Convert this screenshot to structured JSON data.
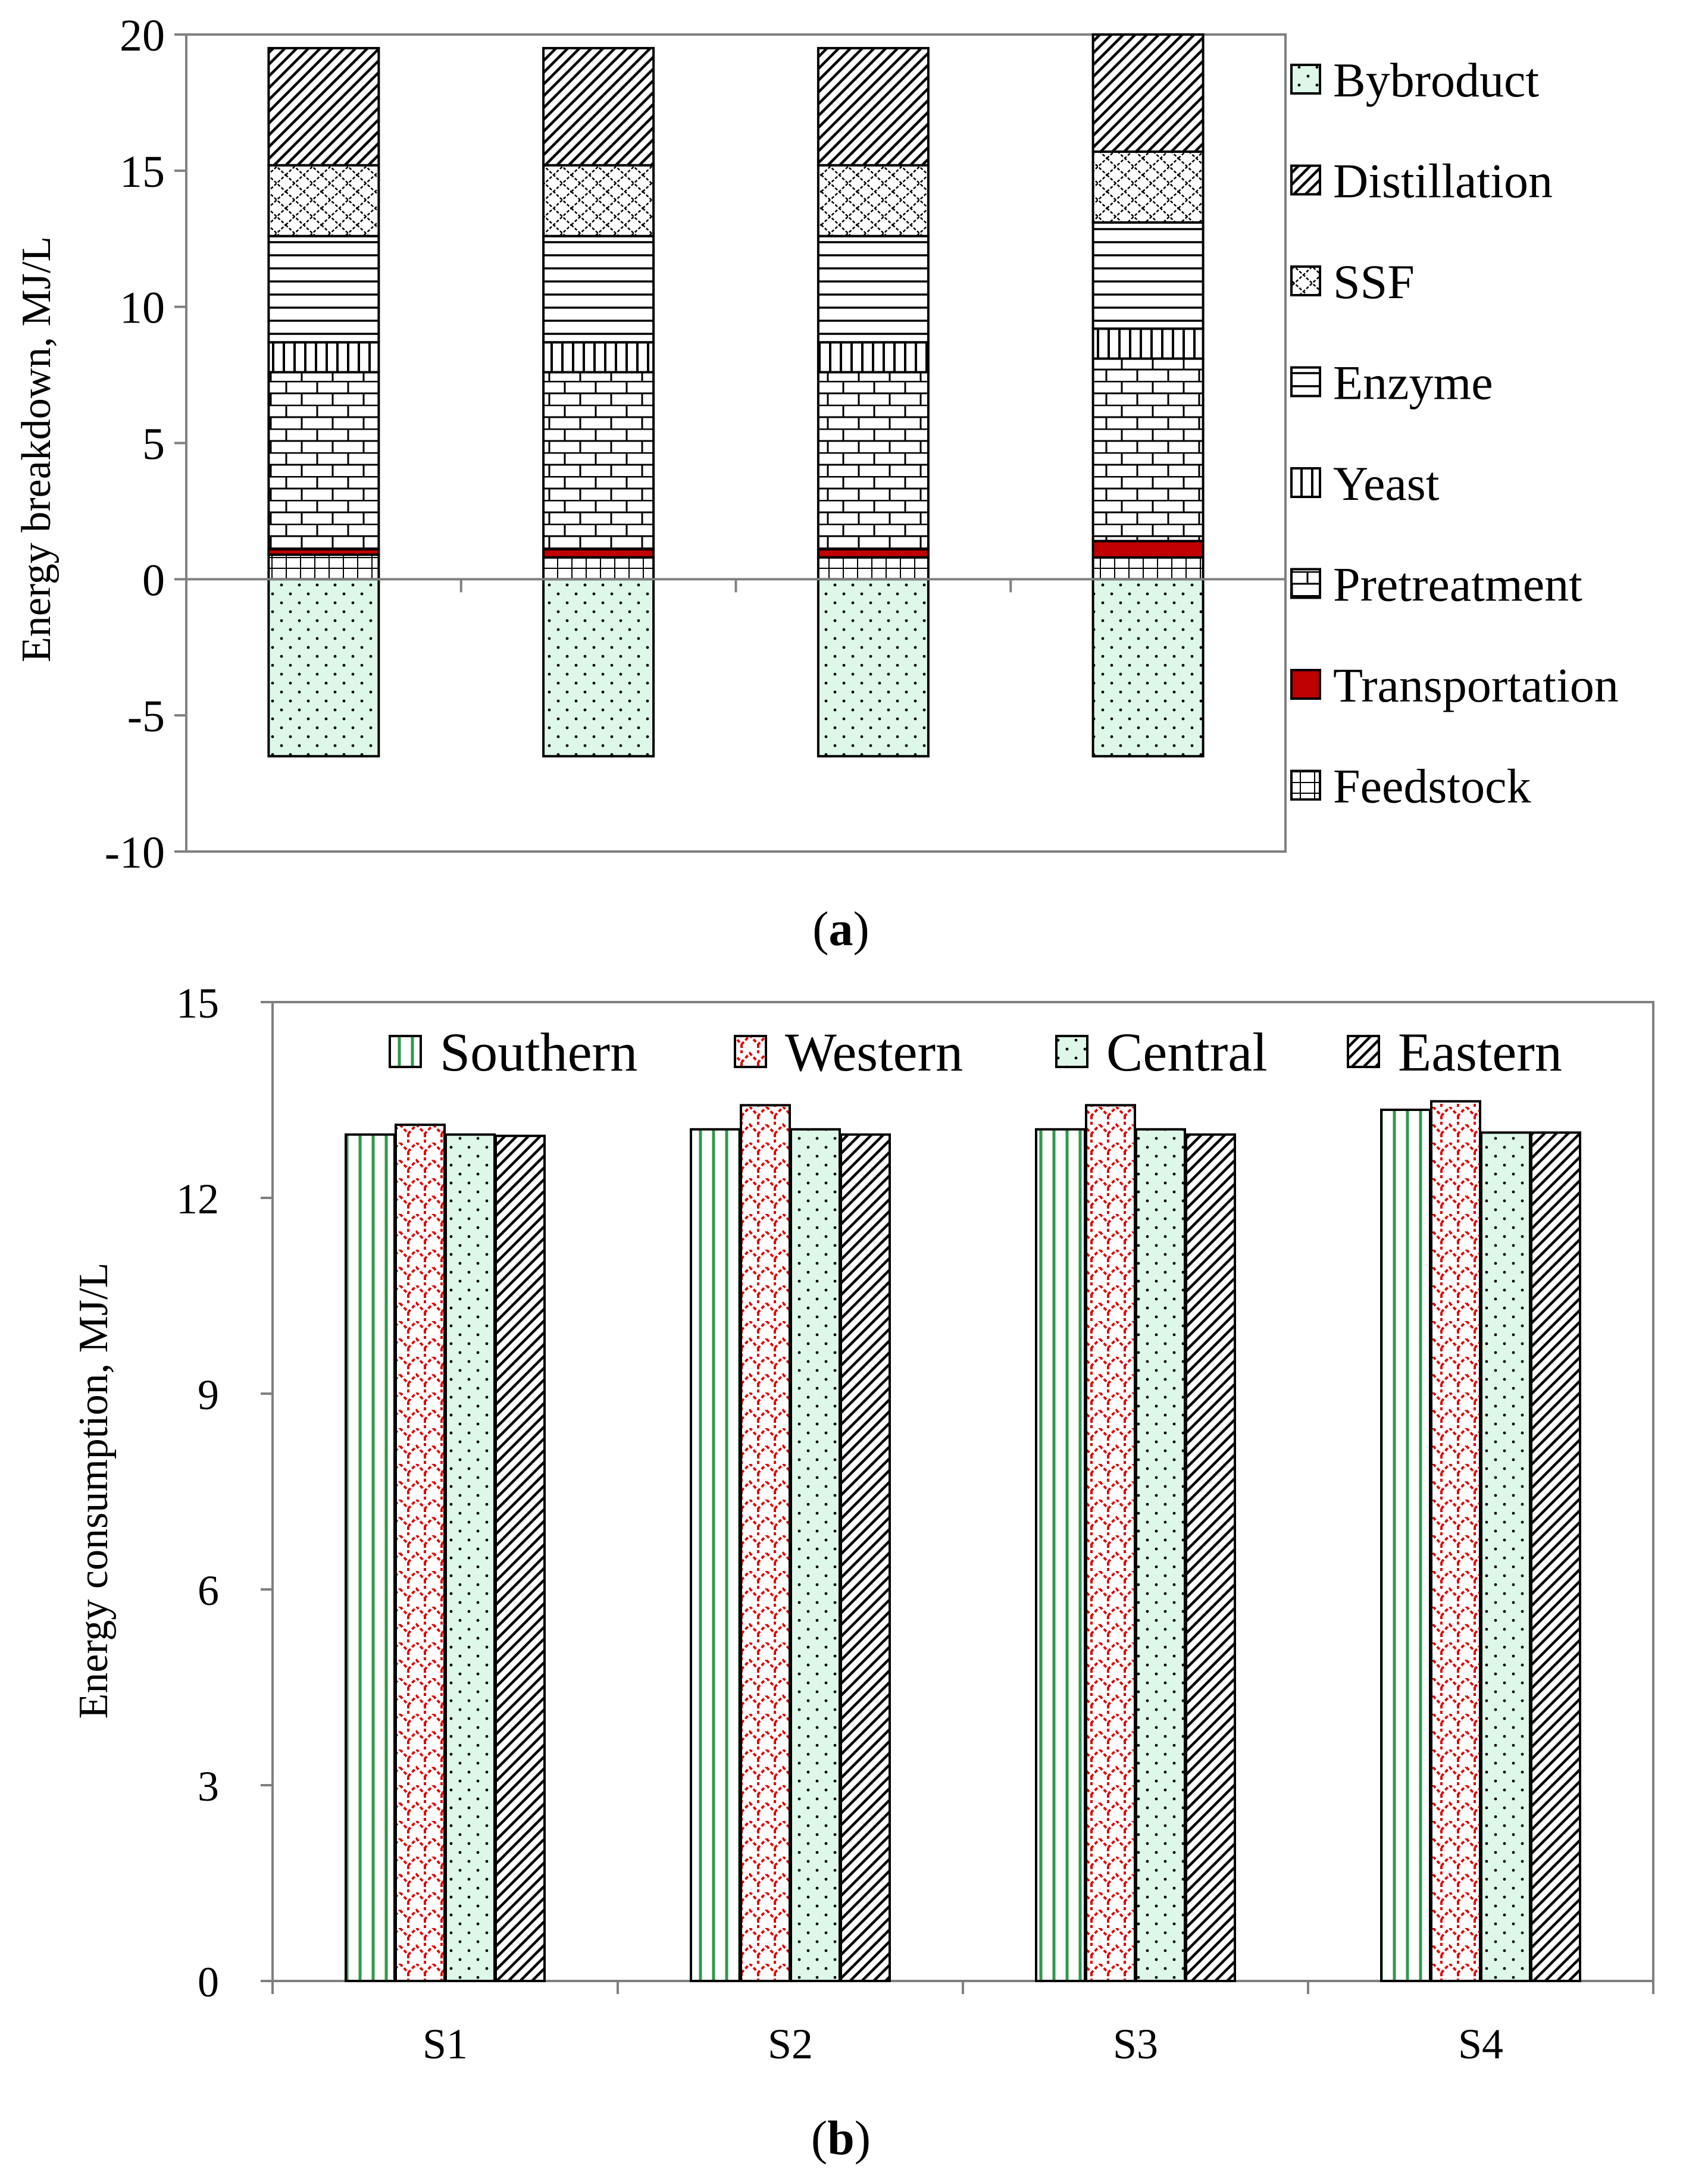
{
  "chart_data": [
    {
      "type": "bar",
      "stacked": true,
      "panel_label": "a",
      "categories": [
        "",
        "",
        "",
        ""
      ],
      "ylabel": "Energy breakdown, MJ/L",
      "xlabel": "",
      "ylim": [
        -10,
        20
      ],
      "yticks": [
        20,
        15,
        10,
        5,
        0,
        -5,
        -10
      ],
      "legend_position": "right",
      "series": [
        {
          "name": "Bybroduct",
          "pattern": "dots",
          "color": "#ddf8e8",
          "values": [
            -6.5,
            -6.5,
            -6.5,
            -6.5
          ]
        },
        {
          "name": "Feedstock",
          "pattern": "grid",
          "color": "#ffffff",
          "values": [
            0.9,
            0.8,
            0.8,
            0.8
          ]
        },
        {
          "name": "Transportation",
          "pattern": "solid",
          "color": "#c00000",
          "values": [
            0.2,
            0.3,
            0.3,
            0.6
          ]
        },
        {
          "name": "Pretreatment",
          "pattern": "brick",
          "color": "#ffffff",
          "values": [
            6.5,
            6.5,
            6.5,
            6.7
          ]
        },
        {
          "name": "Yeast",
          "pattern": "vertical",
          "color": "#ffffff",
          "values": [
            1.1,
            1.1,
            1.1,
            1.1
          ]
        },
        {
          "name": "Enzyme",
          "pattern": "horizontal",
          "color": "#ffffff",
          "values": [
            3.9,
            3.9,
            3.9,
            3.9
          ]
        },
        {
          "name": "SSF",
          "pattern": "wave",
          "color": "#ffffff",
          "values": [
            2.6,
            2.6,
            2.6,
            2.6
          ]
        },
        {
          "name": "Distillation",
          "pattern": "diagonal",
          "color": "#ffffff",
          "values": [
            4.3,
            4.3,
            4.3,
            4.3
          ]
        }
      ],
      "legend_order": [
        "Bybroduct",
        "Distillation",
        "SSF",
        "Enzyme",
        "Yeast",
        "Pretreatment",
        "Transportation",
        "Feedstock"
      ]
    },
    {
      "type": "bar",
      "panel_label": "b",
      "categories": [
        "S1",
        "S2",
        "S3",
        "S4"
      ],
      "ylabel": "Energy consumption, MJ/L",
      "xlabel": "",
      "ylim": [
        0,
        15
      ],
      "yticks": [
        15,
        12,
        9,
        6,
        3,
        0
      ],
      "legend_position": "top",
      "series": [
        {
          "name": "Southern",
          "pattern": "green-vertical",
          "values": [
            12.97,
            13.05,
            13.05,
            13.35
          ]
        },
        {
          "name": "Western",
          "pattern": "red-zigzag",
          "values": [
            13.12,
            13.42,
            13.42,
            13.48
          ]
        },
        {
          "name": "Central",
          "pattern": "dots",
          "values": [
            12.97,
            13.05,
            13.05,
            13.0
          ]
        },
        {
          "name": "Eastern",
          "pattern": "diagonal",
          "values": [
            12.95,
            12.97,
            12.97,
            13.0
          ]
        }
      ]
    }
  ]
}
